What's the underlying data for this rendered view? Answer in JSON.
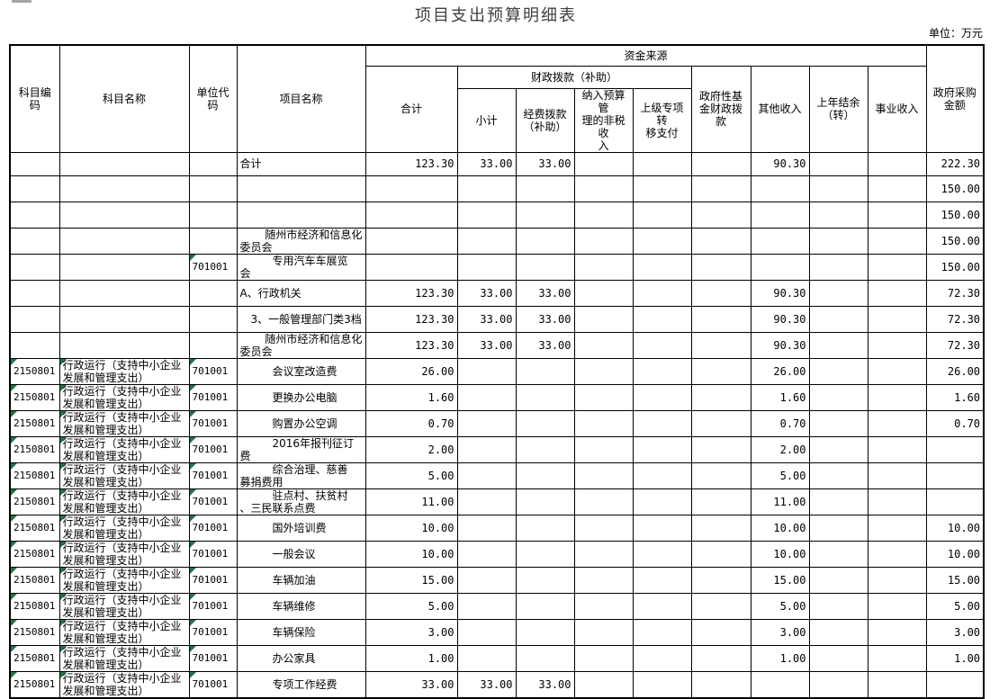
{
  "page": {
    "title": "项目支出预算明细表",
    "unit_label": "单位：万元"
  },
  "colors": {
    "triangle": "#217346",
    "border": "#000000"
  },
  "table": {
    "headers": {
      "subject_code": "科目编码",
      "subject_name": "科目名称",
      "unit_code": "单位代码",
      "project_name": "项目名称",
      "funding_source": "资金来源",
      "total": "合计",
      "fiscal_appropriation": "财政拨款（补助）",
      "subtotal": "小计",
      "fund_appropriation": "经费拨款\n（补助）",
      "nontax_income": "纳入预算管\n理的非税收\n入",
      "superior_transfer": "上级专项转\n移支付",
      "gov_fund": "政府性基\n金财政拨\n款",
      "other_income": "其他收入",
      "prev_balance": "上年结余\n（转）",
      "business_income": "事业收入",
      "gov_procurement": "政府采购\n金额"
    },
    "rows": [
      {
        "cells": [
          "",
          "",
          "",
          "合计",
          "123.30",
          "33.00",
          "33.00",
          "",
          "",
          "",
          "90.30",
          "",
          "",
          "222.30"
        ],
        "tri": []
      },
      {
        "cells": [
          "",
          "",
          "",
          "",
          "",
          "",
          "",
          "",
          "",
          "",
          "",
          "",
          "",
          "150.00"
        ],
        "tri": []
      },
      {
        "cells": [
          "",
          "",
          "",
          "",
          "",
          "",
          "",
          "",
          "",
          "",
          "",
          "",
          "",
          "150.00"
        ],
        "tri": []
      },
      {
        "cells": [
          "",
          "",
          "",
          "　　 随州市经济和信息化\n委员会",
          "",
          "",
          "",
          "",
          "",
          "",
          "",
          "",
          "",
          "150.00"
        ],
        "tri": []
      },
      {
        "cells": [
          "",
          "",
          "701001",
          "　　　专用汽车车展览\n会",
          "",
          "",
          "",
          "",
          "",
          "",
          "",
          "",
          "",
          "150.00"
        ],
        "tri": [
          2
        ]
      },
      {
        "cells": [
          "",
          "",
          "",
          "A、行政机关",
          "123.30",
          "33.00",
          "33.00",
          "",
          "",
          "",
          "90.30",
          "",
          "",
          "72.30"
        ],
        "tri": []
      },
      {
        "cells": [
          "",
          "",
          "",
          "　3、一般管理部门类3档",
          "123.30",
          "33.00",
          "33.00",
          "",
          "",
          "",
          "90.30",
          "",
          "",
          "72.30"
        ],
        "tri": []
      },
      {
        "cells": [
          "",
          "",
          "",
          "　　 随州市经济和信息化\n委员会",
          "123.30",
          "33.00",
          "33.00",
          "",
          "",
          "",
          "90.30",
          "",
          "",
          "72.30"
        ],
        "tri": []
      },
      {
        "cells": [
          "2150801",
          "行政运行（支持中小企业\n发展和管理支出）",
          "701001",
          "　　　会议室改造费",
          "26.00",
          "",
          "",
          "",
          "",
          "",
          "26.00",
          "",
          "",
          "26.00"
        ],
        "tri": [
          0,
          1,
          2
        ]
      },
      {
        "cells": [
          "2150801",
          "行政运行（支持中小企业\n发展和管理支出）",
          "701001",
          "　　　更换办公电脑",
          "1.60",
          "",
          "",
          "",
          "",
          "",
          "1.60",
          "",
          "",
          "1.60"
        ],
        "tri": [
          0,
          1,
          2
        ]
      },
      {
        "cells": [
          "2150801",
          "行政运行（支持中小企业\n发展和管理支出）",
          "701001",
          "　　　购置办公空调",
          "0.70",
          "",
          "",
          "",
          "",
          "",
          "0.70",
          "",
          "",
          "0.70"
        ],
        "tri": [
          0,
          1,
          2
        ]
      },
      {
        "cells": [
          "2150801",
          "行政运行（支持中小企业\n发展和管理支出）",
          "701001",
          "　　　2016年报刊征订\n费",
          "2.00",
          "",
          "",
          "",
          "",
          "",
          "2.00",
          "",
          "",
          ""
        ],
        "tri": [
          0,
          1,
          2
        ]
      },
      {
        "cells": [
          "2150801",
          "行政运行（支持中小企业\n发展和管理支出）",
          "701001",
          "　　　综合治理、慈善\n募捐费用",
          "5.00",
          "",
          "",
          "",
          "",
          "",
          "5.00",
          "",
          "",
          ""
        ],
        "tri": [
          0,
          1,
          2
        ]
      },
      {
        "cells": [
          "2150801",
          "行政运行（支持中小企业\n发展和管理支出）",
          "701001",
          "　　　驻点村、扶贫村\n、三民联系点费",
          "11.00",
          "",
          "",
          "",
          "",
          "",
          "11.00",
          "",
          "",
          ""
        ],
        "tri": [
          0,
          1,
          2
        ]
      },
      {
        "cells": [
          "2150801",
          "行政运行（支持中小企业\n发展和管理支出）",
          "701001",
          "　　　国外培训费",
          "10.00",
          "",
          "",
          "",
          "",
          "",
          "10.00",
          "",
          "",
          "10.00"
        ],
        "tri": [
          0,
          1,
          2
        ]
      },
      {
        "cells": [
          "2150801",
          "行政运行（支持中小企业\n发展和管理支出）",
          "701001",
          "　　　一般会议",
          "10.00",
          "",
          "",
          "",
          "",
          "",
          "10.00",
          "",
          "",
          "10.00"
        ],
        "tri": [
          0,
          1,
          2
        ]
      },
      {
        "cells": [
          "2150801",
          "行政运行（支持中小企业\n发展和管理支出）",
          "701001",
          "　　　车辆加油",
          "15.00",
          "",
          "",
          "",
          "",
          "",
          "15.00",
          "",
          "",
          "15.00"
        ],
        "tri": [
          0,
          1,
          2
        ]
      },
      {
        "cells": [
          "2150801",
          "行政运行（支持中小企业\n发展和管理支出）",
          "701001",
          "　　　车辆维修",
          "5.00",
          "",
          "",
          "",
          "",
          "",
          "5.00",
          "",
          "",
          "5.00"
        ],
        "tri": [
          0,
          1,
          2
        ]
      },
      {
        "cells": [
          "2150801",
          "行政运行（支持中小企业\n发展和管理支出）",
          "701001",
          "　　　车辆保险",
          "3.00",
          "",
          "",
          "",
          "",
          "",
          "3.00",
          "",
          "",
          "3.00"
        ],
        "tri": [
          0,
          1,
          2
        ]
      },
      {
        "cells": [
          "2150801",
          "行政运行（支持中小企业\n发展和管理支出）",
          "701001",
          "　　　办公家具",
          "1.00",
          "",
          "",
          "",
          "",
          "",
          "1.00",
          "",
          "",
          "1.00"
        ],
        "tri": [
          0,
          1,
          2
        ]
      },
      {
        "cells": [
          "2150801",
          "行政运行（支持中小企业\n发展和管理支出）",
          "701001",
          "　　　专项工作经费",
          "33.00",
          "33.00",
          "33.00",
          "",
          "",
          "",
          "",
          "",
          "",
          ""
        ],
        "tri": [
          0,
          1,
          2
        ]
      }
    ]
  }
}
